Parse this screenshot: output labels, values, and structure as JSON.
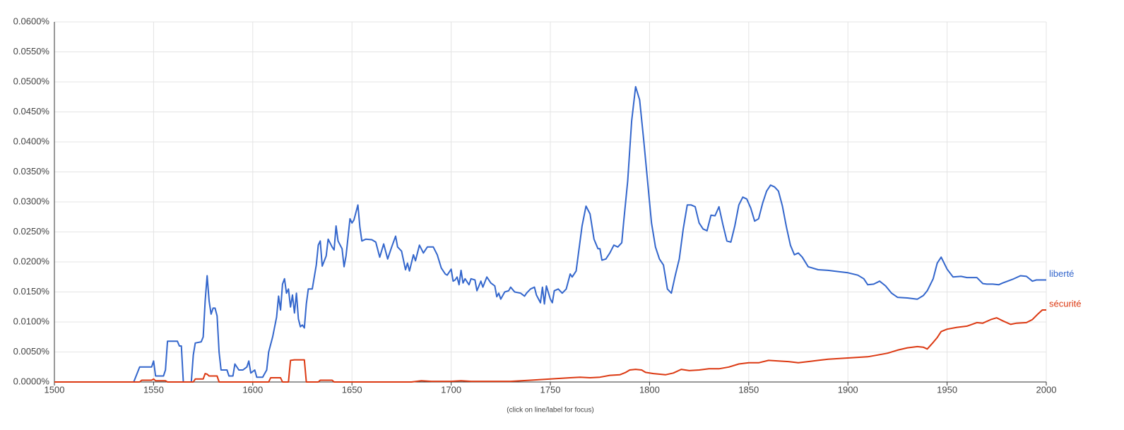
{
  "chart_data": {
    "type": "line",
    "annotation": "(click on line/label for focus)",
    "xlim": [
      1500,
      2000
    ],
    "xticks": [
      1500,
      1550,
      1600,
      1650,
      1700,
      1750,
      1800,
      1850,
      1900,
      1950,
      2000
    ],
    "ylim": [
      0,
      0.06
    ],
    "yticks": [
      {
        "value": 0,
        "label": "0.0000%"
      },
      {
        "value": 0.005,
        "label": "0.0050%"
      },
      {
        "value": 0.01,
        "label": "0.0100%"
      },
      {
        "value": 0.015,
        "label": "0.0150%"
      },
      {
        "value": 0.02,
        "label": "0.0200%"
      },
      {
        "value": 0.025,
        "label": "0.0250%"
      },
      {
        "value": 0.03,
        "label": "0.0300%"
      },
      {
        "value": 0.035,
        "label": "0.0350%"
      },
      {
        "value": 0.04,
        "label": "0.0400%"
      },
      {
        "value": 0.045,
        "label": "0.0450%"
      },
      {
        "value": 0.05,
        "label": "0.0500%"
      },
      {
        "value": 0.055,
        "label": "0.0550%"
      },
      {
        "value": 0.06,
        "label": "0.0600%"
      }
    ],
    "grid": true,
    "series": [
      {
        "name": "liberté",
        "color": "#3366cc",
        "x": [
          1500,
          1540,
          1543,
          1549,
          1550,
          1551,
          1555,
          1556,
          1557,
          1562,
          1563,
          1564,
          1565,
          1569,
          1570,
          1571,
          1574,
          1575,
          1576,
          1577,
          1578,
          1579,
          1580,
          1581,
          1582,
          1583,
          1584,
          1587,
          1588,
          1590,
          1591,
          1593,
          1595,
          1597,
          1598,
          1599,
          1601,
          1602,
          1605,
          1607,
          1608,
          1610,
          1612,
          1613,
          1614,
          1615,
          1616,
          1617,
          1618,
          1619,
          1620,
          1621,
          1622,
          1623,
          1624,
          1625,
          1626,
          1627,
          1628,
          1630,
          1632,
          1633,
          1634,
          1635,
          1637,
          1638,
          1640,
          1641,
          1642,
          1643,
          1645,
          1646,
          1647,
          1649,
          1650,
          1651,
          1653,
          1654,
          1655,
          1657,
          1660,
          1662,
          1664,
          1666,
          1668,
          1670,
          1672,
          1673,
          1675,
          1677,
          1678,
          1679,
          1681,
          1682,
          1684,
          1686,
          1688,
          1691,
          1693,
          1695,
          1697,
          1698,
          1700,
          1701,
          1702,
          1703,
          1704,
          1705,
          1706,
          1707,
          1709,
          1710,
          1712,
          1713,
          1715,
          1716,
          1718,
          1720,
          1722,
          1723,
          1724,
          1725,
          1727,
          1729,
          1730,
          1732,
          1735,
          1737,
          1738,
          1740,
          1742,
          1743,
          1745,
          1746,
          1747,
          1748,
          1750,
          1751,
          1752,
          1754,
          1756,
          1758,
          1760,
          1761,
          1763,
          1764,
          1766,
          1768,
          1770,
          1772,
          1774,
          1775,
          1776,
          1778,
          1780,
          1782,
          1784,
          1786,
          1787,
          1789,
          1791,
          1793,
          1795,
          1797,
          1799,
          1801,
          1803,
          1805,
          1807,
          1809,
          1811,
          1813,
          1815,
          1817,
          1819,
          1821,
          1823,
          1825,
          1827,
          1829,
          1831,
          1833,
          1835,
          1837,
          1839,
          1841,
          1843,
          1845,
          1847,
          1849,
          1851,
          1853,
          1855,
          1857,
          1859,
          1861,
          1863,
          1865,
          1867,
          1869,
          1871,
          1873,
          1875,
          1877,
          1880,
          1885,
          1890,
          1895,
          1900,
          1905,
          1908,
          1910,
          1913,
          1916,
          1919,
          1922,
          1925,
          1930,
          1935,
          1938,
          1940,
          1943,
          1945,
          1947,
          1950,
          1953,
          1957,
          1960,
          1965,
          1968,
          1970,
          1973,
          1976,
          1978,
          1983,
          1987,
          1990,
          1993,
          1995,
          2000
        ],
        "values": [
          0,
          0,
          0.0025,
          0.0025,
          0.0035,
          0.001,
          0.001,
          0.002,
          0.0068,
          0.0068,
          0.006,
          0.006,
          0,
          0,
          0.0045,
          0.0065,
          0.0067,
          0.0075,
          0.0135,
          0.0177,
          0.0135,
          0.0113,
          0.0123,
          0.0123,
          0.011,
          0.005,
          0.002,
          0.002,
          0.001,
          0.001,
          0.003,
          0.002,
          0.002,
          0.0025,
          0.0035,
          0.0015,
          0.002,
          0.0008,
          0.0008,
          0.002,
          0.005,
          0.0075,
          0.0108,
          0.0143,
          0.012,
          0.0163,
          0.0172,
          0.0148,
          0.0155,
          0.0125,
          0.0145,
          0.0115,
          0.0148,
          0.0105,
          0.0092,
          0.0095,
          0.009,
          0.013,
          0.0155,
          0.0155,
          0.0195,
          0.0228,
          0.0235,
          0.0193,
          0.021,
          0.0238,
          0.0225,
          0.022,
          0.026,
          0.0235,
          0.0222,
          0.0192,
          0.021,
          0.0272,
          0.0265,
          0.027,
          0.0295,
          0.0258,
          0.0235,
          0.0238,
          0.0237,
          0.0233,
          0.0208,
          0.023,
          0.0205,
          0.0225,
          0.0243,
          0.0225,
          0.0218,
          0.0187,
          0.0198,
          0.0185,
          0.0212,
          0.0202,
          0.0228,
          0.0215,
          0.0225,
          0.0225,
          0.0212,
          0.019,
          0.018,
          0.0178,
          0.0188,
          0.0168,
          0.017,
          0.0175,
          0.0162,
          0.0186,
          0.0165,
          0.0172,
          0.0162,
          0.0172,
          0.017,
          0.0152,
          0.0168,
          0.0158,
          0.0175,
          0.0165,
          0.016,
          0.0142,
          0.0148,
          0.0138,
          0.015,
          0.0152,
          0.0158,
          0.015,
          0.0148,
          0.0143,
          0.0148,
          0.0155,
          0.0158,
          0.0145,
          0.0132,
          0.0158,
          0.013,
          0.016,
          0.0138,
          0.0132,
          0.0152,
          0.0155,
          0.0148,
          0.0155,
          0.018,
          0.0175,
          0.0185,
          0.021,
          0.026,
          0.0293,
          0.028,
          0.0238,
          0.0222,
          0.0222,
          0.0203,
          0.0205,
          0.0215,
          0.0228,
          0.0225,
          0.0232,
          0.0268,
          0.0335,
          0.0435,
          0.0492,
          0.047,
          0.0405,
          0.0335,
          0.0265,
          0.0225,
          0.0205,
          0.0195,
          0.0155,
          0.0148,
          0.0178,
          0.0205,
          0.0255,
          0.0295,
          0.0295,
          0.0292,
          0.0265,
          0.0255,
          0.0252,
          0.0278,
          0.0277,
          0.0292,
          0.0262,
          0.0235,
          0.0233,
          0.026,
          0.0295,
          0.0308,
          0.0305,
          0.029,
          0.0268,
          0.0272,
          0.0298,
          0.0318,
          0.0328,
          0.0325,
          0.0318,
          0.0293,
          0.0258,
          0.0228,
          0.0212,
          0.0215,
          0.0208,
          0.0192,
          0.0187,
          0.0186,
          0.0184,
          0.0182,
          0.0178,
          0.0172,
          0.0162,
          0.0163,
          0.0168,
          0.016,
          0.0148,
          0.0141,
          0.014,
          0.0138,
          0.0144,
          0.0152,
          0.0172,
          0.0198,
          0.0208,
          0.0188,
          0.0175,
          0.0176,
          0.0174,
          0.0174,
          0.0164,
          0.0163,
          0.0163,
          0.0162,
          0.0165,
          0.0171,
          0.0177,
          0.0176,
          0.0168,
          0.017,
          0.017
        ]
      },
      {
        "name": "sécurité",
        "color": "#dc3912",
        "x": [
          1500,
          1543,
          1544,
          1549,
          1550,
          1551,
          1556,
          1557,
          1570,
          1571,
          1575,
          1576,
          1577,
          1578,
          1582,
          1583,
          1608,
          1609,
          1614,
          1615,
          1618,
          1619,
          1621,
          1626,
          1627,
          1633,
          1634,
          1640,
          1641,
          1680,
          1685,
          1690,
          1700,
          1705,
          1710,
          1720,
          1730,
          1740,
          1745,
          1750,
          1755,
          1760,
          1765,
          1770,
          1775,
          1780,
          1785,
          1788,
          1790,
          1793,
          1796,
          1798,
          1802,
          1808,
          1812,
          1816,
          1820,
          1825,
          1830,
          1835,
          1840,
          1845,
          1850,
          1855,
          1860,
          1865,
          1870,
          1875,
          1880,
          1885,
          1890,
          1895,
          1900,
          1905,
          1910,
          1915,
          1920,
          1925,
          1930,
          1935,
          1938,
          1940,
          1943,
          1945,
          1947,
          1950,
          1955,
          1960,
          1965,
          1968,
          1972,
          1975,
          1978,
          1982,
          1985,
          1990,
          1993,
          1996,
          1998,
          2000
        ],
        "values": [
          0,
          0,
          0.0003,
          0.0003,
          0.0005,
          0.0002,
          0.0002,
          0,
          0,
          0.0005,
          0.0005,
          0.0014,
          0.0013,
          0.001,
          0.001,
          0,
          0,
          0.0007,
          0.0007,
          0,
          0,
          0.0036,
          0.0037,
          0.0037,
          0,
          0,
          0.0003,
          0.0003,
          0,
          0,
          0.0002,
          0.0001,
          0.0001,
          0.0002,
          0.0001,
          0.0001,
          0.0001,
          0.0003,
          0.0004,
          0.0005,
          0.0006,
          0.0007,
          0.0008,
          0.0007,
          0.0008,
          0.0011,
          0.0012,
          0.0016,
          0.002,
          0.0021,
          0.002,
          0.0016,
          0.0014,
          0.0012,
          0.0015,
          0.0021,
          0.0019,
          0.002,
          0.0022,
          0.0022,
          0.0025,
          0.003,
          0.0032,
          0.0032,
          0.0036,
          0.0035,
          0.0034,
          0.0032,
          0.0034,
          0.0036,
          0.0038,
          0.0039,
          0.004,
          0.0041,
          0.0042,
          0.0045,
          0.0048,
          0.0053,
          0.0057,
          0.0059,
          0.0058,
          0.0055,
          0.0066,
          0.0074,
          0.0084,
          0.0088,
          0.0091,
          0.0093,
          0.0099,
          0.0098,
          0.0104,
          0.0107,
          0.0102,
          0.0096,
          0.0098,
          0.0099,
          0.0104,
          0.0114,
          0.012,
          0.012
        ]
      }
    ]
  }
}
